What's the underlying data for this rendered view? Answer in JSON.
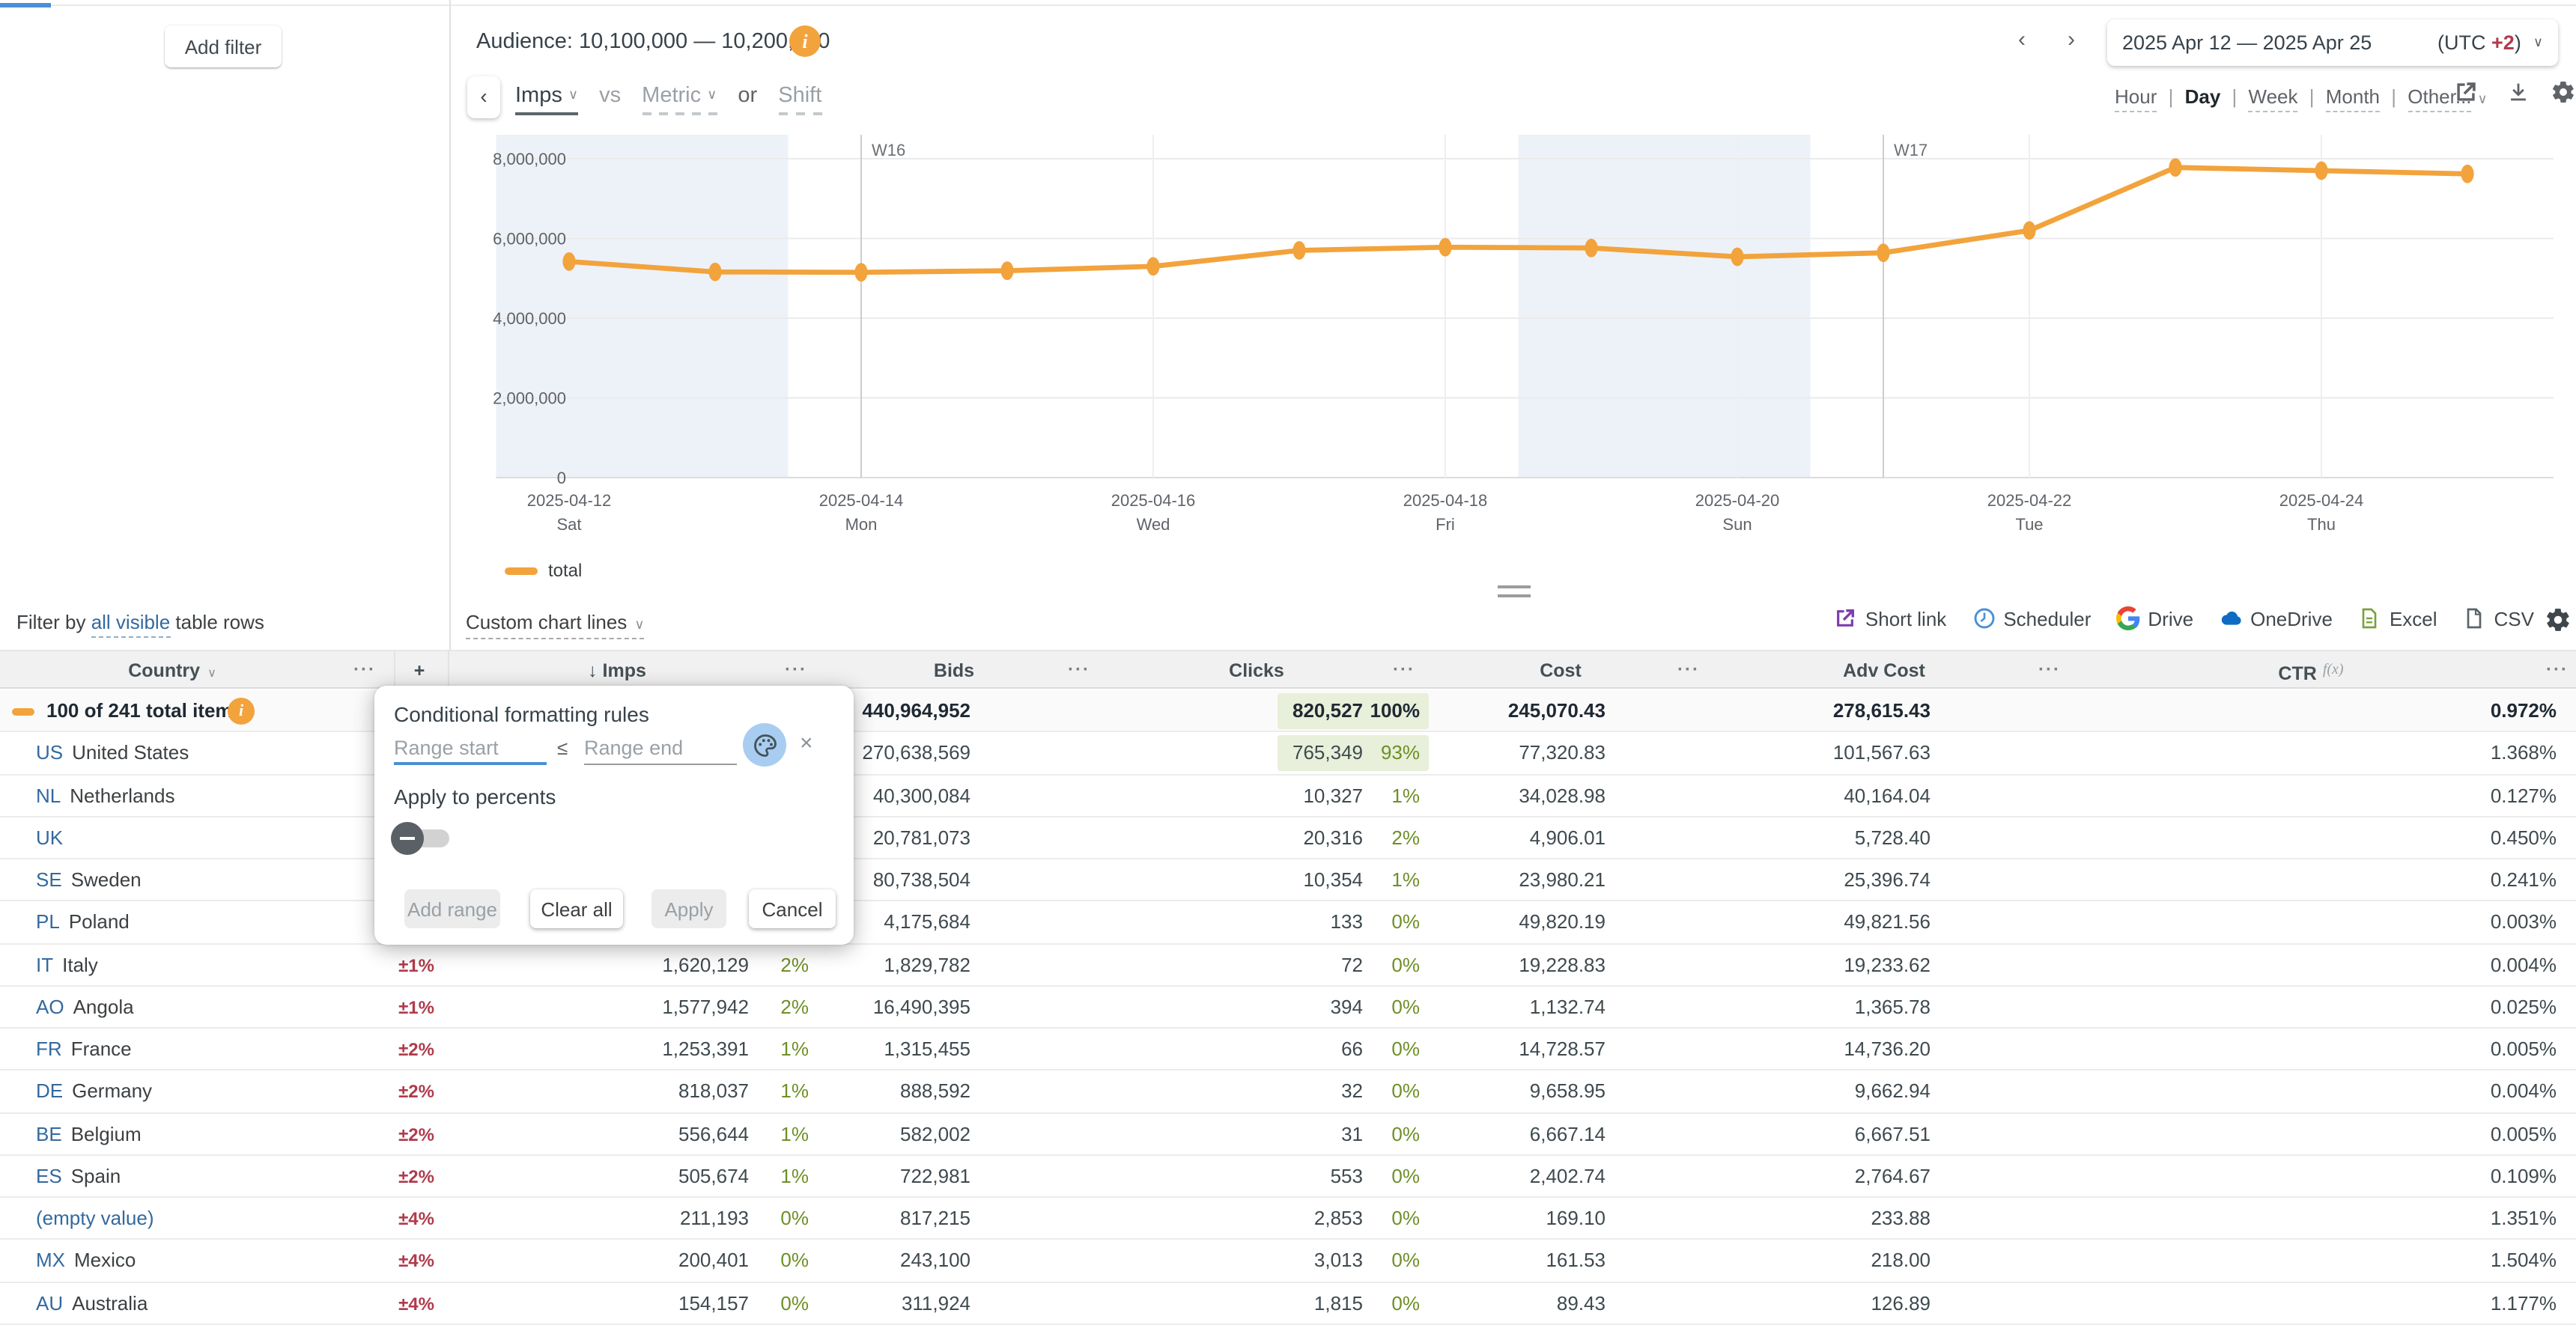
{
  "colors": {
    "accent_orange": "#f2a33c",
    "link_blue": "#33699e",
    "red_badge": "#b03b4c",
    "green_pct": "#6e8f26",
    "green_highlight_bg": "#e8efda",
    "focus_blue": "#4b8fd6",
    "shortlink_purple": "#7d3daf",
    "scheduler_blue": "#4a90d9",
    "onedrive_blue": "#0f6cc4",
    "excel_green": "#7aa23c",
    "weekend_band": "#edf2f9"
  },
  "icons": {
    "info": "i",
    "caret": "∨",
    "back": "‹",
    "prev": "‹",
    "next": "›",
    "close": "×",
    "ellipsis": "···",
    "plus": "+",
    "sort_down": "↓"
  },
  "header": {
    "add_filter": "Add filter",
    "audience_label": "Audience: 10,100,000 — 10,200,000",
    "metric_selector": {
      "primary": "Imps",
      "vs": "vs",
      "secondary": "Metric",
      "or": "or",
      "shift": "Shift"
    },
    "date_range": {
      "label": "2025 Apr 12 — 2025 Apr 25",
      "utc_prefix": "(UTC ",
      "utc_offset": "+2",
      "utc_suffix": ")"
    },
    "granularity": {
      "options": [
        "Hour",
        "Day",
        "Week",
        "Month",
        "Other..."
      ],
      "selected": "Day",
      "separator": "|"
    }
  },
  "chart_data": {
    "type": "line",
    "title": "",
    "xlabel": "",
    "ylabel": "",
    "x": [
      "2025-04-12",
      "2025-04-13",
      "2025-04-14",
      "2025-04-15",
      "2025-04-16",
      "2025-04-17",
      "2025-04-18",
      "2025-04-19",
      "2025-04-20",
      "2025-04-21",
      "2025-04-22",
      "2025-04-23",
      "2025-04-24",
      "2025-04-25"
    ],
    "weekdays": [
      "Sat",
      "Sun",
      "Mon",
      "Tue",
      "Wed",
      "Thu",
      "Fri",
      "Sat",
      "Sun",
      "Mon",
      "Tue",
      "Wed",
      "Thu",
      "Fri"
    ],
    "series": [
      {
        "name": "total",
        "color": "#f2a33c",
        "values": [
          5420000,
          5160000,
          5150000,
          5190000,
          5300000,
          5700000,
          5780000,
          5760000,
          5540000,
          5640000,
          6200000,
          7780000,
          7700000,
          7620000
        ]
      }
    ],
    "ylim": [
      0,
      8000000
    ],
    "yticks": [
      0,
      2000000,
      4000000,
      6000000,
      8000000
    ],
    "ytick_labels": [
      "0",
      "2,000,000",
      "4,000,000",
      "6,000,000",
      "8,000,000"
    ],
    "xtick_every": 2,
    "weekend_bands": [
      [
        0,
        1
      ],
      [
        7,
        8
      ]
    ],
    "week_markers": [
      {
        "index": 2,
        "label": "W16"
      },
      {
        "index": 9,
        "label": "W17"
      }
    ],
    "legend_position": "bottom-left",
    "grid": true
  },
  "legend": {
    "label": "total"
  },
  "toolbar": {
    "filter_by_prefix": "Filter by ",
    "filter_by_link": "all visible",
    "filter_by_suffix": " table rows",
    "custom_chart_lines": "Custom chart lines",
    "exports": [
      {
        "label": "Short link",
        "icon": "external-link"
      },
      {
        "label": "Scheduler",
        "icon": "clock"
      },
      {
        "label": "Drive",
        "icon": "google-g"
      },
      {
        "label": "OneDrive",
        "icon": "cloud"
      },
      {
        "label": "Excel",
        "icon": "sheet"
      },
      {
        "label": "CSV",
        "icon": "file"
      }
    ]
  },
  "popup": {
    "title": "Conditional formatting rules",
    "range_start_placeholder": "Range start",
    "lte": "≤",
    "range_end_placeholder": "Range end",
    "apply_to_percents": "Apply to percents",
    "buttons": {
      "add_range": "Add range",
      "clear_all": "Clear all",
      "apply": "Apply",
      "cancel": "Cancel"
    }
  },
  "table": {
    "columns": {
      "country": "Country",
      "imps": "Imps",
      "bids": "Bids",
      "clicks": "Clicks",
      "cost": "Cost",
      "adv_cost": "Adv Cost",
      "ctr": "CTR"
    },
    "ctr_fx": "f(x)",
    "rows": [
      {
        "total": true,
        "name": "100 of 241 total items",
        "info": true,
        "code": "",
        "pm": "",
        "imps": "",
        "imps_pct": "",
        "bids": "440,964,952",
        "clicks": "820,527",
        "clicks_pct": "100%",
        "clicks_hl": true,
        "cost": "245,070.43",
        "adv_cost": "278,615.43",
        "ctr": "0.972%"
      },
      {
        "code": "US",
        "name": "United States",
        "pm": "",
        "imps": "",
        "imps_pct": "",
        "bids": "270,638,569",
        "clicks": "765,349",
        "clicks_pct": "93%",
        "clicks_hl": true,
        "cost": "77,320.83",
        "adv_cost": "101,567.63",
        "ctr": "1.368%"
      },
      {
        "code": "NL",
        "name": "Netherlands",
        "pm": "",
        "imps": "",
        "imps_pct": "",
        "bids": "40,300,084",
        "clicks": "10,327",
        "clicks_pct": "1%",
        "cost": "34,028.98",
        "adv_cost": "40,164.04",
        "ctr": "0.127%"
      },
      {
        "code": "UK",
        "name": "",
        "pm": "",
        "imps": "",
        "imps_pct": "",
        "bids": "20,781,073",
        "clicks": "20,316",
        "clicks_pct": "2%",
        "cost": "4,906.01",
        "adv_cost": "5,728.40",
        "ctr": "0.450%"
      },
      {
        "code": "SE",
        "name": "Sweden",
        "pm": "",
        "imps": "",
        "imps_pct": "",
        "bids": "80,738,504",
        "clicks": "10,354",
        "clicks_pct": "1%",
        "cost": "23,980.21",
        "adv_cost": "25,396.74",
        "ctr": "0.241%"
      },
      {
        "code": "PL",
        "name": "Poland",
        "pm": "",
        "imps": "",
        "imps_pct": "",
        "bids": "4,175,684",
        "clicks": "133",
        "clicks_pct": "0%",
        "cost": "49,820.19",
        "adv_cost": "49,821.56",
        "ctr": "0.003%"
      },
      {
        "code": "IT",
        "name": "Italy",
        "pm": "±1%",
        "imps": "1,620,129",
        "imps_pct": "2%",
        "bids": "1,829,782",
        "clicks": "72",
        "clicks_pct": "0%",
        "cost": "19,228.83",
        "adv_cost": "19,233.62",
        "ctr": "0.004%"
      },
      {
        "code": "AO",
        "name": "Angola",
        "pm": "±1%",
        "imps": "1,577,942",
        "imps_pct": "2%",
        "bids": "16,490,395",
        "clicks": "394",
        "clicks_pct": "0%",
        "cost": "1,132.74",
        "adv_cost": "1,365.78",
        "ctr": "0.025%"
      },
      {
        "code": "FR",
        "name": "France",
        "pm": "±2%",
        "imps": "1,253,391",
        "imps_pct": "1%",
        "bids": "1,315,455",
        "clicks": "66",
        "clicks_pct": "0%",
        "cost": "14,728.57",
        "adv_cost": "14,736.20",
        "ctr": "0.005%"
      },
      {
        "code": "DE",
        "name": "Germany",
        "pm": "±2%",
        "imps": "818,037",
        "imps_pct": "1%",
        "bids": "888,592",
        "clicks": "32",
        "clicks_pct": "0%",
        "cost": "9,658.95",
        "adv_cost": "9,662.94",
        "ctr": "0.004%"
      },
      {
        "code": "BE",
        "name": "Belgium",
        "pm": "±2%",
        "imps": "556,644",
        "imps_pct": "1%",
        "bids": "582,002",
        "clicks": "31",
        "clicks_pct": "0%",
        "cost": "6,667.14",
        "adv_cost": "6,667.51",
        "ctr": "0.005%"
      },
      {
        "code": "ES",
        "name": "Spain",
        "pm": "±2%",
        "imps": "505,674",
        "imps_pct": "1%",
        "bids": "722,981",
        "clicks": "553",
        "clicks_pct": "0%",
        "cost": "2,402.74",
        "adv_cost": "2,764.67",
        "ctr": "0.109%"
      },
      {
        "code": "",
        "name": "(empty value)",
        "name_blue": true,
        "pm": "±4%",
        "imps": "211,193",
        "imps_pct": "0%",
        "bids": "817,215",
        "clicks": "2,853",
        "clicks_pct": "0%",
        "cost": "169.10",
        "adv_cost": "233.88",
        "ctr": "1.351%"
      },
      {
        "code": "MX",
        "name": "Mexico",
        "pm": "±4%",
        "imps": "200,401",
        "imps_pct": "0%",
        "bids": "243,100",
        "clicks": "3,013",
        "clicks_pct": "0%",
        "cost": "161.53",
        "adv_cost": "218.00",
        "ctr": "1.504%"
      },
      {
        "code": "AU",
        "name": "Australia",
        "pm": "±4%",
        "imps": "154,157",
        "imps_pct": "0%",
        "bids": "311,924",
        "clicks": "1,815",
        "clicks_pct": "0%",
        "cost": "89.43",
        "adv_cost": "126.89",
        "ctr": "1.177%"
      }
    ]
  }
}
